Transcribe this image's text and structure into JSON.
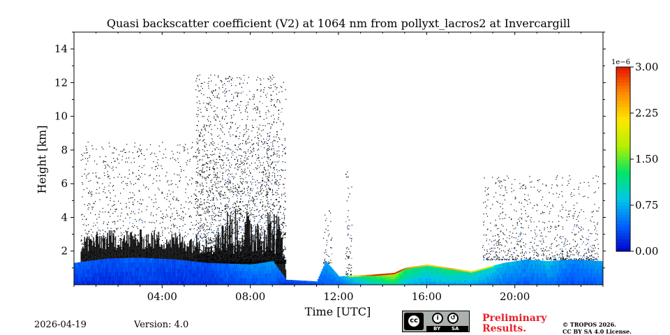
{
  "chart_data": {
    "type": "heatmap",
    "title": "Quasi backscatter coefficient (V2) at 1064 nm from pollyxt_lacros2 at Invercargill",
    "xlabel": "Time [UTC]",
    "ylabel": "Height [km]",
    "xlim": [
      0,
      24
    ],
    "ylim": [
      0,
      15
    ],
    "x_ticks": [
      4,
      8,
      12,
      16,
      20
    ],
    "x_tick_labels": [
      "04:00",
      "08:00",
      "12:00",
      "16:00",
      "20:00"
    ],
    "y_ticks": [
      2,
      4,
      6,
      8,
      10,
      12,
      14
    ],
    "y_tick_labels": [
      "2",
      "4",
      "6",
      "8",
      "10",
      "12",
      "14"
    ],
    "colorbar": {
      "min": 0.0,
      "max": 3.0,
      "ticks": [
        0.0,
        0.75,
        1.5,
        2.25,
        3.0
      ],
      "tick_labels": [
        "0.00",
        "0.75",
        "1.50",
        "2.25",
        "3.00"
      ],
      "scale_label": "1e−6",
      "colormap": [
        "#0000c8",
        "#0064ff",
        "#00c8e6",
        "#00e664",
        "#b4f000",
        "#ffe600",
        "#ff8c00",
        "#e61400"
      ]
    },
    "noise_color": "#000000",
    "aerosol_layer": [
      {
        "t": 0.0,
        "top": 1.3,
        "value": 0.35
      },
      {
        "t": 1.5,
        "top": 1.55,
        "value": 0.3
      },
      {
        "t": 3.0,
        "top": 1.6,
        "value": 0.35
      },
      {
        "t": 4.5,
        "top": 1.5,
        "value": 0.3
      },
      {
        "t": 6.0,
        "top": 1.3,
        "value": 0.3
      },
      {
        "t": 7.0,
        "top": 1.25,
        "value": 0.4
      },
      {
        "t": 8.0,
        "top": 1.2,
        "value": 0.5
      },
      {
        "t": 9.0,
        "top": 1.4,
        "value": 0.55
      },
      {
        "t": 9.6,
        "top": 0.3,
        "value": 0.3
      },
      {
        "t": 11.0,
        "top": 0.2,
        "value": 0.4
      },
      {
        "t": 11.4,
        "top": 1.4,
        "value": 0.6
      },
      {
        "t": 12.0,
        "top": 0.5,
        "value": 0.6
      },
      {
        "t": 13.5,
        "top": 0.6,
        "value": 1.3
      },
      {
        "t": 14.5,
        "top": 0.7,
        "value": 1.6
      },
      {
        "t": 15.0,
        "top": 1.0,
        "value": 1.2
      },
      {
        "t": 16.0,
        "top": 1.2,
        "value": 1.0
      },
      {
        "t": 17.0,
        "top": 1.0,
        "value": 1.1
      },
      {
        "t": 18.0,
        "top": 0.8,
        "value": 1.0
      },
      {
        "t": 18.6,
        "top": 1.0,
        "value": 0.9
      },
      {
        "t": 19.5,
        "top": 1.3,
        "value": 0.7
      },
      {
        "t": 20.5,
        "top": 1.5,
        "value": 0.6
      },
      {
        "t": 21.5,
        "top": 1.4,
        "value": 0.7
      },
      {
        "t": 22.5,
        "top": 1.5,
        "value": 0.5
      },
      {
        "t": 24.0,
        "top": 1.4,
        "value": 0.6
      }
    ],
    "noise_regions": [
      {
        "t0": 0.3,
        "t1": 9.6,
        "base": 1.3,
        "top": 8.5,
        "density": 0.35
      },
      {
        "t0": 5.5,
        "t1": 9.6,
        "base": 1.3,
        "top": 12.5,
        "density": 0.6
      },
      {
        "t0": 11.3,
        "t1": 11.7,
        "base": 1.3,
        "top": 4.5,
        "density": 0.4
      },
      {
        "t0": 12.3,
        "t1": 12.6,
        "base": 0.6,
        "top": 7.0,
        "density": 0.4
      },
      {
        "t0": 18.5,
        "t1": 23.8,
        "base": 1.5,
        "top": 6.5,
        "density": 0.35
      }
    ]
  },
  "footer": {
    "date": "2026-04-19",
    "version": "Version: 4.0",
    "preliminary": "Preliminary\nResults.",
    "copyright": "© TROPOS 2026.\nCC BY SA 4.0 License.",
    "cc_by": "BY",
    "cc_sa": "SA",
    "cc_text": "cc"
  }
}
